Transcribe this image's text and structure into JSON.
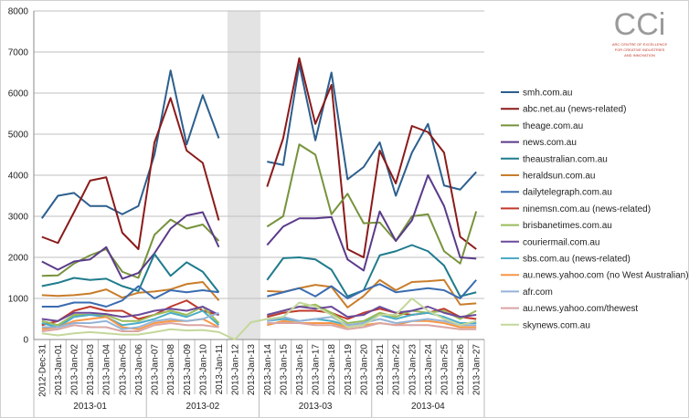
{
  "chart_data": {
    "type": "line",
    "logo": {
      "mark": "CCi",
      "text": [
        "ARC CENTRE OF EXCELLENCE",
        "FOR CREATIVE INDUSTRIES",
        "AND INNOVATION"
      ]
    },
    "categories": [
      "2012-Dec-31",
      "2013-Jan-01",
      "2013-Jan-02",
      "2013-Jan-03",
      "2013-Jan-04",
      "2013-Jan-05",
      "2013-Jan-06",
      "2013-Jan-07",
      "2013-Jan-08",
      "2013-Jan-09",
      "2013-Jan-10",
      "2013-Jan-11",
      "2013-Jan-12",
      "2013-Jan-13",
      "2013-Jan-14",
      "2013-Jan-15",
      "2013-Jan-16",
      "2013-Jan-17",
      "2013-Jan-18",
      "2013-Jan-19",
      "2013-Jan-20",
      "2013-Jan-21",
      "2013-Jan-22",
      "2013-Jan-23",
      "2013-Jan-24",
      "2013-Jan-25",
      "2013-Jan-26",
      "2013-Jan-27"
    ],
    "groups": [
      {
        "label": "2013-01",
        "span": 7
      },
      {
        "label": "2013-02",
        "span": 7
      },
      {
        "label": "2013-03",
        "span": 7
      },
      {
        "label": "2013-04",
        "span": 7
      }
    ],
    "ylim": [
      0,
      8000
    ],
    "yticks": [
      0,
      1000,
      2000,
      3000,
      4000,
      5000,
      6000,
      7000,
      8000
    ],
    "grid": true,
    "legend": "right",
    "series": [
      {
        "name": "smh.com.au",
        "color": "#2c5f8e",
        "values": [
          2950,
          3500,
          3570,
          3250,
          3250,
          3050,
          3250,
          4500,
          6550,
          4750,
          5950,
          4900,
          null,
          null,
          4330,
          4250,
          6700,
          4850,
          6500,
          3900,
          4200,
          4800,
          3500,
          4550,
          5250,
          3750,
          3650,
          4080
        ]
      },
      {
        "name": "abc.net.au (news-related)",
        "color": "#8b1a1a",
        "values": [
          2500,
          2350,
          3100,
          3870,
          3950,
          2600,
          2200,
          4800,
          5880,
          4600,
          4300,
          2900,
          null,
          null,
          3720,
          4900,
          6850,
          5250,
          6200,
          2200,
          2000,
          4600,
          3800,
          5200,
          5050,
          4550,
          2500,
          2200
        ]
      },
      {
        "name": "theage.com.au",
        "color": "#77933c",
        "values": [
          1550,
          1560,
          1850,
          2050,
          2200,
          1650,
          1500,
          2550,
          2920,
          2700,
          2800,
          2400,
          null,
          null,
          2750,
          3000,
          4750,
          4500,
          3050,
          3550,
          2830,
          2850,
          2400,
          3000,
          3050,
          2150,
          1850,
          3120
        ]
      },
      {
        "name": "news.com.au",
        "color": "#5a3a8a",
        "values": [
          1900,
          1700,
          1900,
          1950,
          2250,
          1480,
          1620,
          2100,
          2700,
          3020,
          3100,
          2250,
          null,
          null,
          2300,
          2750,
          2950,
          2950,
          2980,
          1950,
          1680,
          3120,
          2400,
          2900,
          4000,
          3250,
          2000,
          1970
        ]
      },
      {
        "name": "theaustralian.com.au",
        "color": "#1f7b8c",
        "values": [
          1300,
          1380,
          1500,
          1450,
          1480,
          1300,
          1180,
          2080,
          1550,
          1880,
          1650,
          1150,
          null,
          null,
          1450,
          1980,
          2000,
          1950,
          1700,
          1050,
          1200,
          2050,
          2150,
          2300,
          2150,
          1800,
          1050,
          1150
        ]
      },
      {
        "name": "heraldsun.com.au",
        "color": "#c87d2a",
        "values": [
          1080,
          1060,
          1080,
          1120,
          1220,
          1020,
          1140,
          1170,
          1220,
          1350,
          1400,
          950,
          null,
          null,
          1180,
          1160,
          1250,
          1330,
          1280,
          780,
          1060,
          1450,
          1200,
          1400,
          1420,
          1450,
          850,
          880
        ]
      },
      {
        "name": "dailytelegraph.com.au",
        "color": "#3a6cb0",
        "values": [
          800,
          800,
          900,
          900,
          800,
          950,
          1300,
          1000,
          1200,
          1150,
          1200,
          1150,
          null,
          null,
          1050,
          1150,
          1250,
          1050,
          1300,
          1000,
          1200,
          1350,
          1150,
          1200,
          1250,
          1200,
          1000,
          1450
        ]
      },
      {
        "name": "ninemsn.com.au (news-related)",
        "color": "#c0392b",
        "values": [
          350,
          450,
          700,
          800,
          700,
          700,
          500,
          600,
          800,
          950,
          700,
          600,
          null,
          null,
          550,
          650,
          700,
          700,
          650,
          500,
          650,
          750,
          650,
          600,
          650,
          750,
          550,
          500
        ]
      },
      {
        "name": "brisbanetimes.com.au",
        "color": "#9bbb59",
        "values": [
          450,
          350,
          600,
          600,
          600,
          450,
          450,
          600,
          700,
          600,
          800,
          400,
          null,
          null,
          600,
          700,
          800,
          850,
          650,
          400,
          450,
          650,
          550,
          700,
          650,
          700,
          500,
          700
        ]
      },
      {
        "name": "couriermail.com.au",
        "color": "#6b4a9a",
        "values": [
          500,
          450,
          650,
          650,
          620,
          550,
          600,
          700,
          750,
          700,
          800,
          600,
          null,
          null,
          600,
          700,
          800,
          750,
          800,
          550,
          600,
          800,
          650,
          700,
          800,
          650,
          550,
          600
        ]
      },
      {
        "name": "sbs.com.au (news-related)",
        "color": "#4bacc6",
        "values": [
          400,
          300,
          550,
          600,
          550,
          350,
          400,
          500,
          650,
          550,
          700,
          350,
          null,
          null,
          450,
          500,
          450,
          500,
          450,
          350,
          400,
          600,
          500,
          600,
          650,
          550,
          400,
          400
        ]
      },
      {
        "name": "au.news.yahoo.com (no West Australian)",
        "color": "#f79646",
        "values": [
          250,
          300,
          450,
          500,
          550,
          300,
          250,
          400,
          450,
          450,
          500,
          300,
          null,
          null,
          350,
          450,
          400,
          400,
          400,
          300,
          350,
          400,
          350,
          450,
          450,
          400,
          300,
          300
        ]
      },
      {
        "name": "afr.com",
        "color": "#95b3d7",
        "values": [
          300,
          300,
          400,
          400,
          450,
          250,
          300,
          450,
          500,
          450,
          500,
          650,
          null,
          null,
          450,
          550,
          450,
          500,
          550,
          350,
          400,
          500,
          400,
          450,
          500,
          450,
          350,
          350
        ]
      },
      {
        "name": "au.news.yahoo.com/thewest",
        "color": "#d9a5a3",
        "values": [
          200,
          250,
          350,
          300,
          300,
          200,
          200,
          350,
          400,
          350,
          350,
          300,
          null,
          null,
          400,
          400,
          400,
          350,
          350,
          250,
          300,
          400,
          350,
          350,
          350,
          300,
          250,
          250
        ]
      },
      {
        "name": "skynews.com.au",
        "color": "#c4d79b",
        "values": [
          150,
          100,
          150,
          180,
          150,
          120,
          120,
          180,
          250,
          220,
          230,
          180,
          0,
          420,
          500,
          550,
          900,
          800,
          600,
          300,
          350,
          600,
          600,
          1000,
          700,
          500,
          350,
          450
        ]
      }
    ]
  }
}
